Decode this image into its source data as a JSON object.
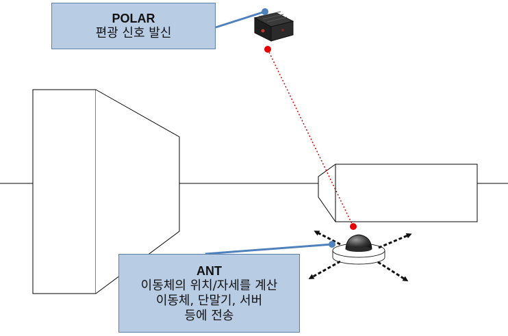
{
  "polar": {
    "title": "POLAR",
    "desc": "편광 신호 발신"
  },
  "ant": {
    "title": "ANT",
    "lines": [
      "이동체의 위치/자세를 계산",
      "이동체, 단말기, 서버",
      "등에 전송"
    ]
  },
  "colors": {
    "callout_fill": "#b8cce4",
    "callout_border": "#5b7fa8",
    "leader_line": "#4f81bd",
    "signal_dot": "#e60000",
    "signal_path": "#d40000"
  },
  "icons": [
    "polar-device-icon",
    "ant-device-icon",
    "movement-arrow-icon"
  ]
}
